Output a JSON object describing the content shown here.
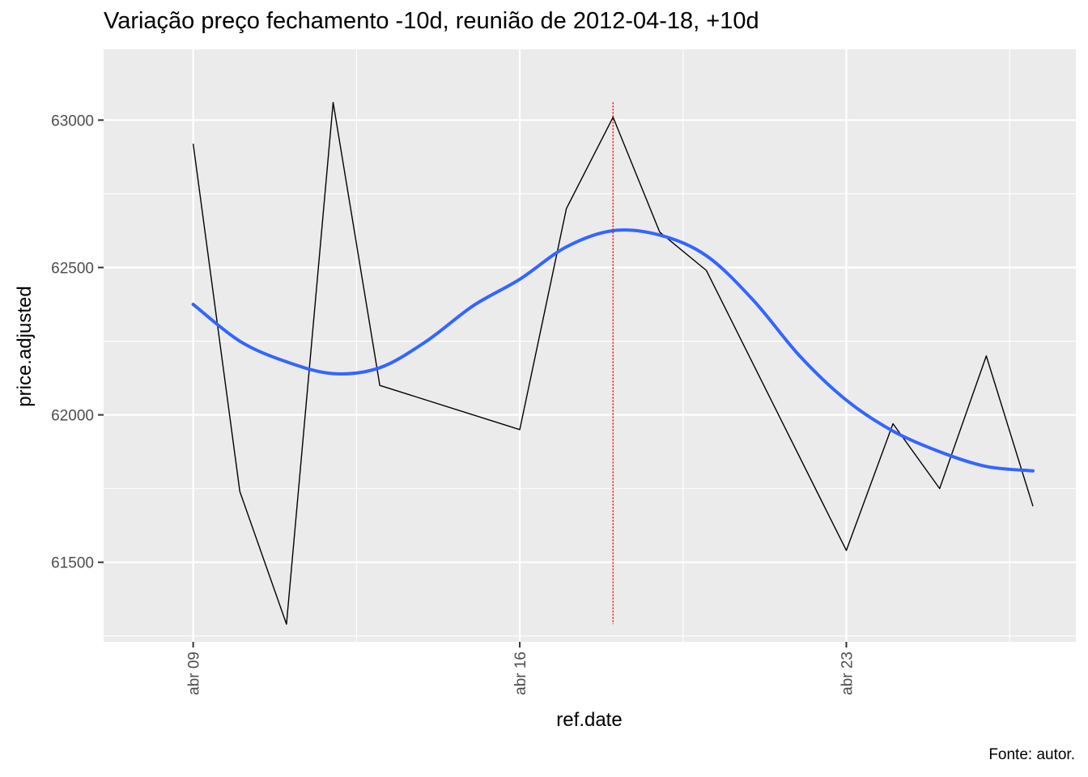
{
  "chart_data": {
    "type": "line",
    "title": "Variação preço fechamento -10d, reunião de 2012-04-18, +10d",
    "xlabel": "ref.date",
    "ylabel": "price.adjusted",
    "caption": "Fonte: autor.",
    "x_ticks": [
      {
        "date": "2012-04-09",
        "label": "abr 09"
      },
      {
        "date": "2012-04-16",
        "label": "abr 16"
      },
      {
        "date": "2012-04-23",
        "label": "abr 23"
      }
    ],
    "y_ticks": [
      61500,
      62000,
      62500,
      63000
    ],
    "xlim": [
      "2012-04-08",
      "2012-04-27"
    ],
    "ylim": [
      61230,
      63240
    ],
    "grid": true,
    "event_line": {
      "date": "2012-04-18",
      "ymin": 61290,
      "ymax": 63060,
      "color": "#ff0000"
    },
    "series": [
      {
        "color": "#000000",
        "points": [
          {
            "x": "2012-04-09",
            "y": 62920
          },
          {
            "x": "2012-04-10",
            "y": 61740
          },
          {
            "x": "2012-04-11",
            "y": 61290
          },
          {
            "x": "2012-04-12",
            "y": 63060
          },
          {
            "x": "2012-04-13",
            "y": 62100
          },
          {
            "x": "2012-04-16",
            "y": 61950
          },
          {
            "x": "2012-04-17",
            "y": 62700
          },
          {
            "x": "2012-04-18",
            "y": 63010
          },
          {
            "x": "2012-04-19",
            "y": 62620
          },
          {
            "x": "2012-04-20",
            "y": 62490
          },
          {
            "x": "2012-04-23",
            "y": 61540
          },
          {
            "x": "2012-04-24",
            "y": 61970
          },
          {
            "x": "2012-04-25",
            "y": 61750
          },
          {
            "x": "2012-04-26",
            "y": 62200
          },
          {
            "x": "2012-04-27",
            "y": 61690
          }
        ]
      },
      {
        "type": "smooth",
        "color": "#3366ff",
        "points": [
          {
            "x": "2012-04-09",
            "y": 62375
          },
          {
            "x": "2012-04-10",
            "y": 62250
          },
          {
            "x": "2012-04-11",
            "y": 62180
          },
          {
            "x": "2012-04-12",
            "y": 62140
          },
          {
            "x": "2012-04-13",
            "y": 62160
          },
          {
            "x": "2012-04-14",
            "y": 62250
          },
          {
            "x": "2012-04-15",
            "y": 62370
          },
          {
            "x": "2012-04-16",
            "y": 62460
          },
          {
            "x": "2012-04-17",
            "y": 62570
          },
          {
            "x": "2012-04-18",
            "y": 62625
          },
          {
            "x": "2012-04-19",
            "y": 62610
          },
          {
            "x": "2012-04-20",
            "y": 62540
          },
          {
            "x": "2012-04-21",
            "y": 62390
          },
          {
            "x": "2012-04-22",
            "y": 62200
          },
          {
            "x": "2012-04-23",
            "y": 62050
          },
          {
            "x": "2012-04-24",
            "y": 61945
          },
          {
            "x": "2012-04-25",
            "y": 61875
          },
          {
            "x": "2012-04-26",
            "y": 61825
          },
          {
            "x": "2012-04-27",
            "y": 61810
          }
        ]
      }
    ]
  }
}
